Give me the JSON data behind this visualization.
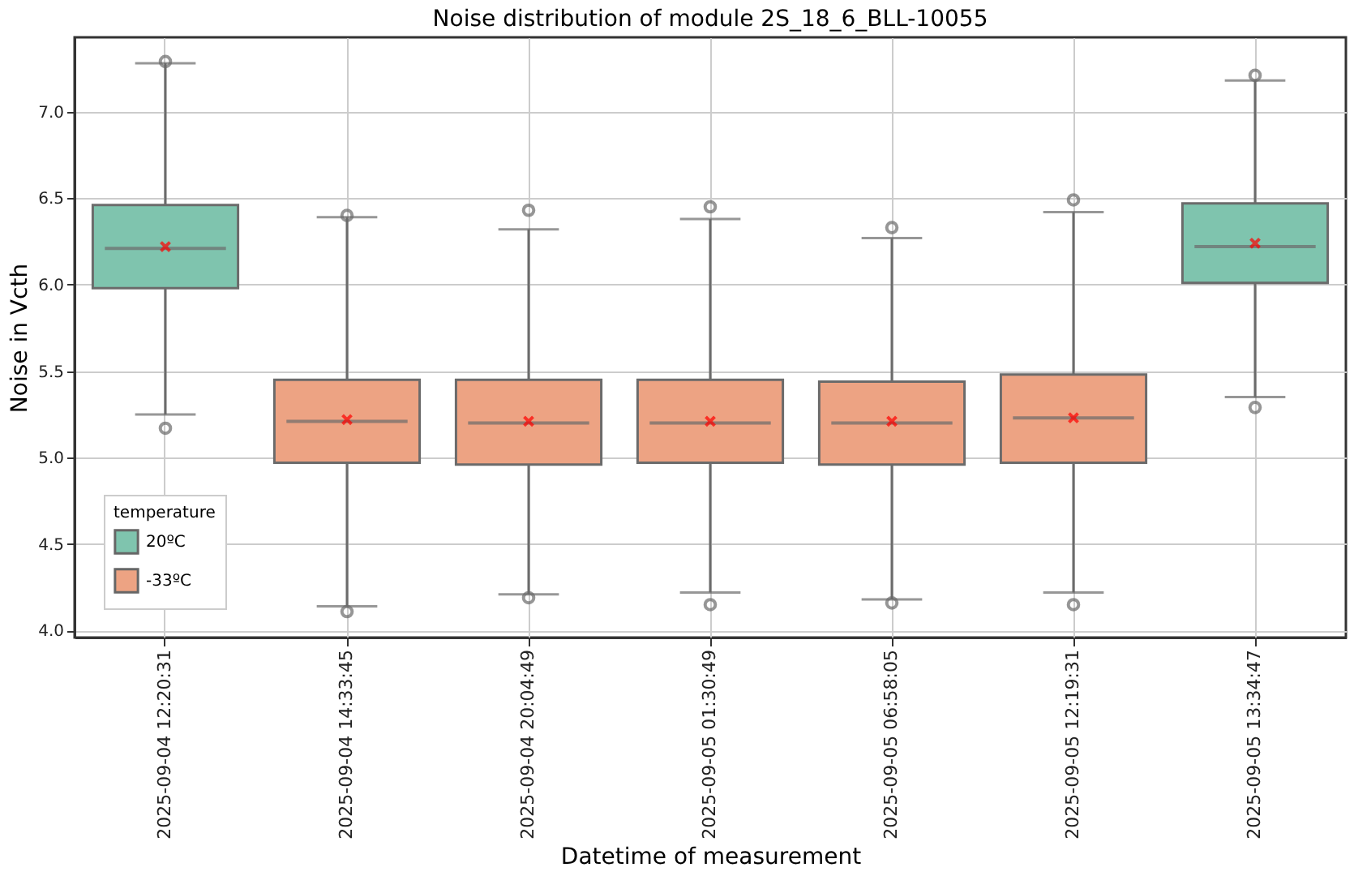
{
  "chart_data": {
    "type": "box",
    "title": "Noise distribution of module 2S_18_6_BLL-10055",
    "xlabel": "Datetime of measurement",
    "ylabel": "Noise in Vcth",
    "legend_title": "temperature",
    "categories": [
      "2025-09-04 12:20:31",
      "2025-09-04 14:33:45",
      "2025-09-04 20:04:49",
      "2025-09-05 01:30:49",
      "2025-09-05 06:58:05",
      "2025-09-05 12:19:31",
      "2025-09-05 13:34:47"
    ],
    "series": [
      {
        "name": "20ºC",
        "color": "#7fc4ae",
        "boxes": [
          {
            "low": 5.25,
            "q1": 5.98,
            "median": 6.21,
            "q3": 6.46,
            "high": 7.28,
            "mean": 6.22,
            "outliers": [
              7.29,
              5.17
            ]
          },
          null,
          null,
          null,
          null,
          null,
          {
            "low": 5.35,
            "q1": 6.01,
            "median": 6.22,
            "q3": 6.47,
            "high": 7.18,
            "mean": 6.24,
            "outliers": [
              7.21,
              5.29
            ]
          }
        ]
      },
      {
        "name": "-33ºC",
        "color": "#eda383",
        "boxes": [
          null,
          {
            "low": 4.14,
            "q1": 4.97,
            "median": 5.21,
            "q3": 5.45,
            "high": 6.39,
            "mean": 5.22,
            "outliers": [
              6.4,
              4.11
            ]
          },
          {
            "low": 4.21,
            "q1": 4.96,
            "median": 5.2,
            "q3": 5.45,
            "high": 6.32,
            "mean": 5.21,
            "outliers": [
              6.43,
              4.19
            ]
          },
          {
            "low": 4.22,
            "q1": 4.97,
            "median": 5.2,
            "q3": 5.45,
            "high": 6.38,
            "mean": 5.21,
            "outliers": [
              6.45,
              4.15
            ]
          },
          {
            "low": 4.18,
            "q1": 4.96,
            "median": 5.2,
            "q3": 5.44,
            "high": 6.27,
            "mean": 5.21,
            "outliers": [
              6.33,
              4.16
            ]
          },
          {
            "low": 4.22,
            "q1": 4.97,
            "median": 5.23,
            "q3": 5.48,
            "high": 6.42,
            "mean": 5.23,
            "outliers": [
              6.49,
              4.15
            ]
          },
          null
        ]
      }
    ],
    "ylim": [
      3.96,
      7.43
    ],
    "yticks": [
      {
        "value": 4,
        "label": "4.0"
      },
      4.5,
      {
        "value": 5,
        "label": "5.0"
      },
      5.5,
      {
        "value": 6,
        "label": "6.0"
      },
      6.5,
      {
        "value": 7,
        "label": "7.0"
      }
    ],
    "grid": true,
    "legend": "bottom left"
  }
}
